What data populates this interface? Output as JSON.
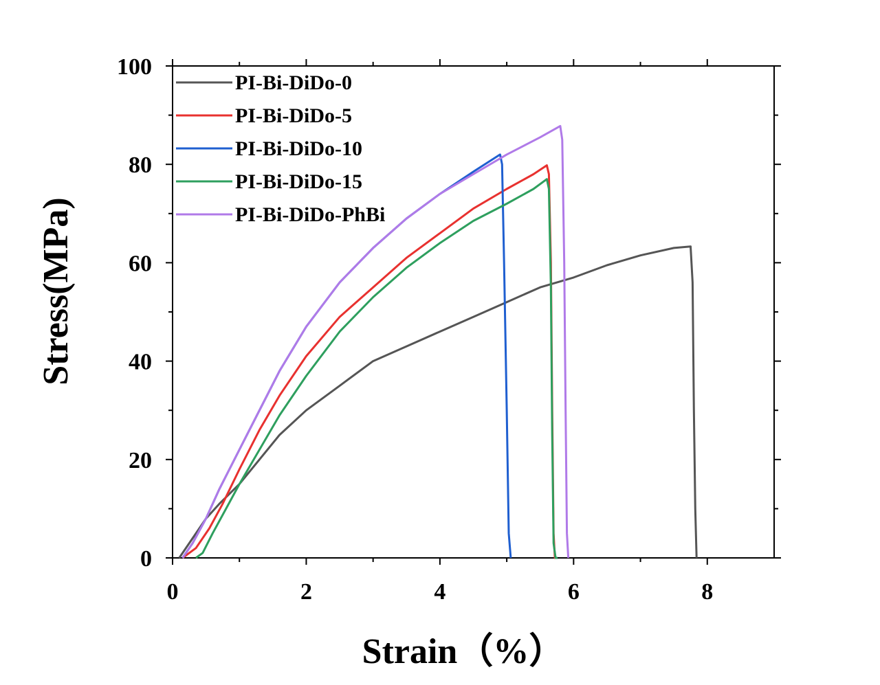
{
  "chart_data": {
    "type": "line",
    "title": "",
    "xlabel": "Strain（%）",
    "ylabel": "Stress(MPa)",
    "xlim": [
      0,
      9
    ],
    "ylim": [
      0,
      100
    ],
    "xticks": [
      0,
      2,
      4,
      6,
      8
    ],
    "yticks": [
      0,
      20,
      40,
      60,
      80,
      100
    ],
    "grid": false,
    "legend_position": "top-left",
    "series": [
      {
        "name": "PI-Bi-DiDo-0",
        "color": "#555555",
        "x": [
          0.1,
          0.3,
          0.5,
          0.7,
          1.0,
          1.3,
          1.6,
          2.0,
          2.5,
          3.0,
          3.5,
          4.0,
          4.5,
          5.0,
          5.5,
          6.0,
          6.5,
          7.0,
          7.5,
          7.75,
          7.78,
          7.8,
          7.82,
          7.84
        ],
        "y": [
          0,
          4,
          8,
          11,
          15,
          20,
          25,
          30,
          35,
          40,
          43,
          46,
          49,
          52,
          55,
          57,
          59.5,
          61.5,
          63,
          63.3,
          56,
          30,
          10,
          0
        ]
      },
      {
        "name": "PI-Bi-DiDo-5",
        "color": "#e8312f",
        "x": [
          0.15,
          0.35,
          0.55,
          0.75,
          1.0,
          1.3,
          1.6,
          2.0,
          2.5,
          3.0,
          3.5,
          4.0,
          4.5,
          5.0,
          5.4,
          5.6,
          5.63,
          5.66,
          5.68,
          5.7,
          5.72,
          5.75
        ],
        "y": [
          0,
          2,
          6,
          11,
          18,
          26,
          33,
          41,
          49,
          55,
          61,
          66,
          71,
          75,
          78,
          79.8,
          78,
          60,
          30,
          5,
          0,
          0
        ]
      },
      {
        "name": "PI-Bi-DiDo-10",
        "color": "#1f5fd0",
        "x": [
          0.15,
          0.3,
          0.5,
          0.7,
          1.0,
          1.3,
          1.6,
          2.0,
          2.5,
          3.0,
          3.5,
          4.0,
          4.5,
          4.9,
          4.93,
          4.96,
          5.0,
          5.03,
          5.06
        ],
        "y": [
          0,
          3,
          8,
          14,
          22,
          30,
          38,
          47,
          56,
          63,
          69,
          74,
          78.5,
          82,
          80,
          60,
          30,
          5,
          0
        ]
      },
      {
        "name": "PI-Bi-DiDo-15",
        "color": "#2e9f5e",
        "x": [
          0.35,
          0.45,
          0.6,
          0.8,
          1.0,
          1.3,
          1.6,
          2.0,
          2.5,
          3.0,
          3.5,
          4.0,
          4.5,
          5.0,
          5.4,
          5.6,
          5.63,
          5.66,
          5.68,
          5.7,
          5.73,
          5.76
        ],
        "y": [
          0,
          1,
          5,
          10,
          15,
          22,
          29,
          37,
          46,
          53,
          59,
          64,
          68.5,
          72,
          75,
          77,
          75,
          55,
          25,
          3,
          0,
          0
        ]
      },
      {
        "name": "PI-Bi-DiDo-PhBi",
        "color": "#b07ae8",
        "x": [
          0.15,
          0.3,
          0.5,
          0.7,
          1.0,
          1.3,
          1.6,
          2.0,
          2.5,
          3.0,
          3.5,
          4.0,
          4.5,
          5.0,
          5.5,
          5.8,
          5.83,
          5.86,
          5.88,
          5.9,
          5.92
        ],
        "y": [
          0,
          3,
          8,
          14,
          22,
          30,
          38,
          47,
          56,
          63,
          69,
          74,
          78,
          82,
          85.5,
          87.8,
          85,
          60,
          30,
          5,
          0
        ]
      }
    ]
  }
}
